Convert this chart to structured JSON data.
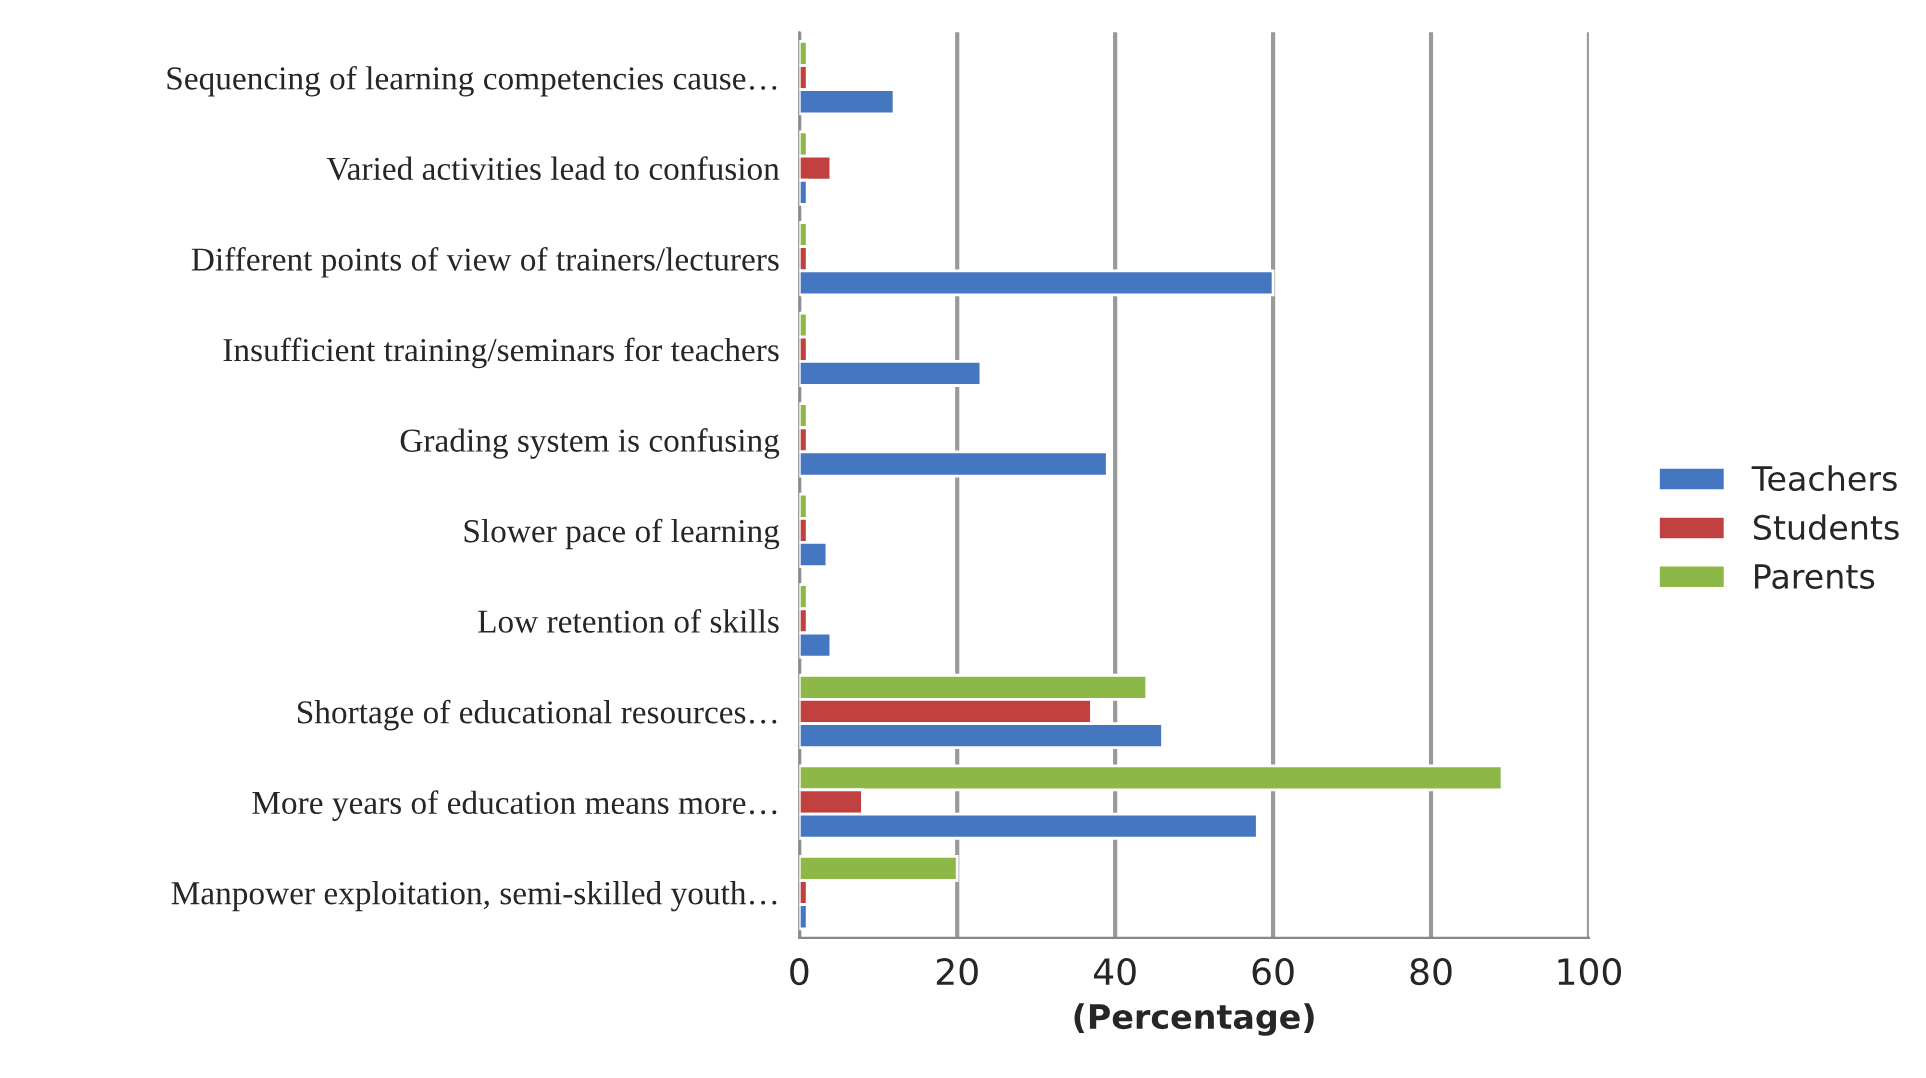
{
  "chart_data": {
    "type": "bar",
    "orientation": "horizontal",
    "xlabel": "(Percentage)",
    "categories": [
      "Sequencing of learning competencies cause…",
      "Varied activities lead to confusion",
      "Different points of view of trainers/lecturers",
      "Insufficient training/seminars for teachers",
      "Grading system is confusing",
      "Slower pace of learning",
      "Low retention of skills",
      "Shortage of educational resources…",
      "More years of education means more…",
      "Manpower exploitation, semi-skilled youth…"
    ],
    "series": [
      {
        "name": "Parents",
        "color": "#8db848",
        "values": [
          1,
          1,
          1,
          1,
          1,
          1,
          1,
          44,
          89,
          20
        ]
      },
      {
        "name": "Students",
        "color": "#c0413f",
        "values": [
          1,
          4,
          1,
          1,
          1,
          1,
          1,
          37,
          8,
          1
        ]
      },
      {
        "name": "Teachers",
        "color": "#4577c0",
        "values": [
          12,
          1,
          60,
          23,
          39,
          3.5,
          4,
          46,
          58,
          1
        ]
      }
    ],
    "xlim": [
      0,
      100
    ],
    "xticks": [
      0,
      20,
      40,
      60,
      80,
      100
    ],
    "grid": "x",
    "legend": "right"
  }
}
